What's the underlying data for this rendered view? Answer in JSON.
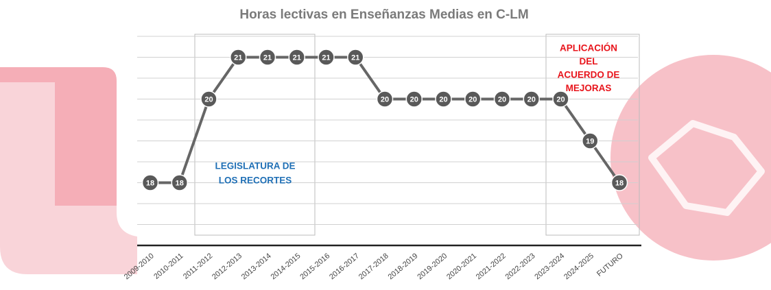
{
  "chart_data": {
    "type": "line",
    "title": "Horas lectivas en Enseñanzas Medias en C-LM",
    "categories": [
      "2009-2010",
      "2010-2011",
      "2011-2012",
      "2012-2013",
      "2013-2014",
      "2014-2015",
      "2015-2016",
      "2016-2017",
      "2017-2018",
      "2018-2019",
      "2019-2020",
      "2020-2021",
      "2021-2022",
      "2022-2023",
      "2023-2024",
      "2024-2025",
      "FUTURO"
    ],
    "values": [
      18,
      18,
      20,
      21,
      21,
      21,
      21,
      21,
      20,
      20,
      20,
      20,
      20,
      20,
      20,
      19,
      18
    ],
    "color": "#666666",
    "ylim": [
      16.5,
      21.5
    ],
    "yticks": [
      17,
      17.5,
      18,
      18.5,
      19,
      19.5,
      20,
      20.5,
      21,
      21.5
    ],
    "grid": true,
    "annotations": [
      [
        "LEGISLATURA DE",
        "LOS RECORTES"
      ],
      [
        "APLICACIÓN",
        "DEL",
        "ACUERDO DE",
        "MEJORAS"
      ]
    ]
  }
}
